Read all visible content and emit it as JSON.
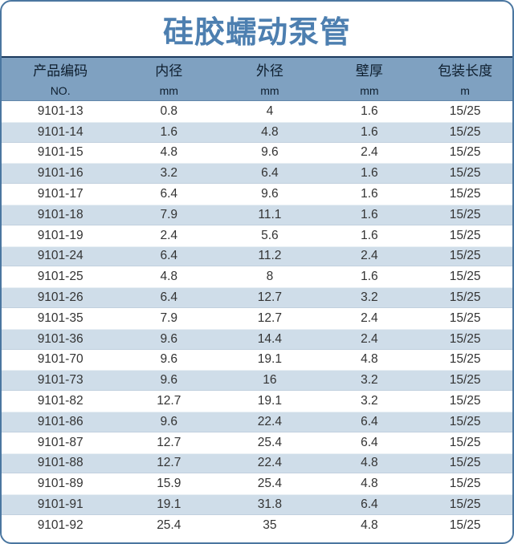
{
  "title": "硅胶蠕动泵管",
  "table": {
    "columns": [
      {
        "label": "产品编码",
        "unit": "NO."
      },
      {
        "label": "内径",
        "unit": "mm"
      },
      {
        "label": "外径",
        "unit": "mm"
      },
      {
        "label": "壁厚",
        "unit": "mm"
      },
      {
        "label": "包装长度",
        "unit": "m"
      }
    ],
    "rows": [
      [
        "9101-13",
        "0.8",
        "4",
        "1.6",
        "15/25"
      ],
      [
        "9101-14",
        "1.6",
        "4.8",
        "1.6",
        "15/25"
      ],
      [
        "9101-15",
        "4.8",
        "9.6",
        "2.4",
        "15/25"
      ],
      [
        "9101-16",
        "3.2",
        "6.4",
        "1.6",
        "15/25"
      ],
      [
        "9101-17",
        "6.4",
        "9.6",
        "1.6",
        "15/25"
      ],
      [
        "9101-18",
        "7.9",
        "11.1",
        "1.6",
        "15/25"
      ],
      [
        "9101-19",
        "2.4",
        "5.6",
        "1.6",
        "15/25"
      ],
      [
        "9101-24",
        "6.4",
        "11.2",
        "2.4",
        "15/25"
      ],
      [
        "9101-25",
        "4.8",
        "8",
        "1.6",
        "15/25"
      ],
      [
        "9101-26",
        "6.4",
        "12.7",
        "3.2",
        "15/25"
      ],
      [
        "9101-35",
        "7.9",
        "12.7",
        "2.4",
        "15/25"
      ],
      [
        "9101-36",
        "9.6",
        "14.4",
        "2.4",
        "15/25"
      ],
      [
        "9101-70",
        "9.6",
        "19.1",
        "4.8",
        "15/25"
      ],
      [
        "9101-73",
        "9.6",
        "16",
        "3.2",
        "15/25"
      ],
      [
        "9101-82",
        "12.7",
        "19.1",
        "3.2",
        "15/25"
      ],
      [
        "9101-86",
        "9.6",
        "22.4",
        "6.4",
        "15/25"
      ],
      [
        "9101-87",
        "12.7",
        "25.4",
        "6.4",
        "15/25"
      ],
      [
        "9101-88",
        "12.7",
        "22.4",
        "4.8",
        "15/25"
      ],
      [
        "9101-89",
        "15.9",
        "25.4",
        "4.8",
        "15/25"
      ],
      [
        "9101-91",
        "19.1",
        "31.8",
        "6.4",
        "15/25"
      ],
      [
        "9101-92",
        "25.4",
        "35",
        "4.8",
        "15/25"
      ]
    ]
  },
  "colors": {
    "title_text": "#4d7fb0",
    "header_background": "#7fa1c1",
    "header_text": "#0e1e2e",
    "alt_row_background": "#cfdde9",
    "outer_border": "#4a76a0",
    "header_top_rule": "#1c3a5e",
    "body_text": "#333333"
  }
}
